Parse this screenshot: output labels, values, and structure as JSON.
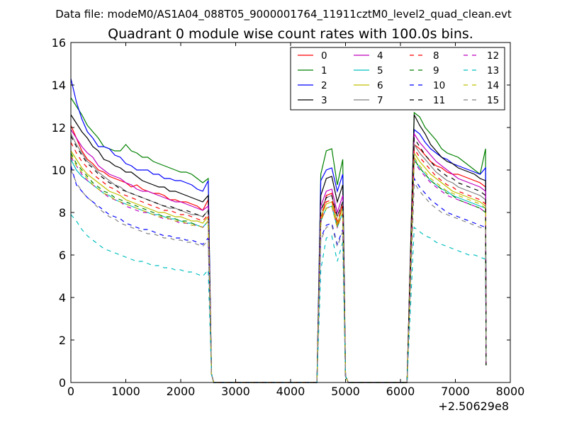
{
  "suptitle": "Data file: modeM0/AS1A04_088T05_9000001764_11911cztM0_level2_quad_clean.evt",
  "chart_data": {
    "type": "line",
    "title": "Quadrant 0 module wise count rates with 100.0s bins.",
    "xlabel": "",
    "ylabel": "",
    "xlim": [
      0,
      8000
    ],
    "ylim": [
      0,
      16
    ],
    "x_ticks": [
      0,
      1000,
      2000,
      3000,
      4000,
      5000,
      6000,
      7000,
      8000
    ],
    "y_ticks": [
      0,
      2,
      4,
      6,
      8,
      10,
      12,
      14,
      16
    ],
    "x_offset_label": "+2.50629e8",
    "grid": false,
    "legend": {
      "placement": "top-right",
      "columns": 4
    },
    "segments": [
      {
        "start": 0,
        "count": 26
      },
      {
        "start": 4550,
        "count": 5
      },
      {
        "start": 6250,
        "count": 14
      }
    ],
    "series": [
      {
        "name": "0",
        "color": "#ff0000",
        "dash": "solid",
        "seg1": [
          12.1,
          11.5,
          10.9,
          10.5,
          10.3,
          10.0,
          9.9,
          9.7,
          9.6,
          9.5,
          9.4,
          9.2,
          9.3,
          9.1,
          9.0,
          8.9,
          8.9,
          8.8,
          8.6,
          8.6,
          8.5,
          8.5,
          8.4,
          8.3,
          8.1,
          8.6
        ],
        "seg2": [
          7.5,
          8.8,
          8.9,
          7.3,
          8.5
        ],
        "seg3": [
          11.2,
          11.0,
          10.7,
          10.4,
          10.2,
          10.1,
          9.9,
          9.8,
          9.8,
          9.7,
          9.6,
          9.5,
          9.4,
          9.2
        ]
      },
      {
        "name": "1",
        "color": "#008000",
        "dash": "solid",
        "seg1": [
          13.4,
          13.0,
          12.6,
          12.1,
          11.8,
          11.5,
          11.1,
          11.0,
          10.9,
          10.9,
          11.2,
          10.9,
          10.8,
          10.6,
          10.6,
          10.4,
          10.3,
          10.2,
          10.1,
          10.0,
          9.9,
          9.9,
          9.8,
          9.6,
          9.4,
          9.6
        ],
        "seg2": [
          9.8,
          10.9,
          11.0,
          9.3,
          10.5
        ],
        "seg3": [
          12.7,
          12.5,
          12.0,
          11.7,
          11.4,
          11.0,
          10.8,
          10.7,
          10.6,
          10.4,
          10.2,
          10.0,
          9.8,
          11.0
        ]
      },
      {
        "name": "2",
        "color": "#0000ff",
        "dash": "solid",
        "seg1": [
          14.3,
          13.2,
          12.4,
          11.8,
          11.5,
          11.1,
          11.1,
          11.0,
          10.7,
          10.6,
          10.3,
          10.2,
          10.0,
          10.0,
          10.0,
          9.8,
          9.8,
          9.6,
          9.6,
          9.5,
          9.5,
          9.4,
          9.3,
          9.1,
          9.0,
          9.5
        ],
        "seg2": [
          9.5,
          10.0,
          10.1,
          9.0,
          9.8
        ],
        "seg3": [
          11.9,
          11.7,
          11.3,
          11.0,
          10.8,
          10.6,
          10.5,
          10.3,
          10.2,
          10.1,
          10.0,
          9.9,
          9.8,
          10.1
        ]
      },
      {
        "name": "3",
        "color": "#000000",
        "dash": "solid",
        "seg1": [
          12.6,
          12.2,
          11.8,
          11.5,
          11.1,
          10.9,
          10.5,
          10.4,
          10.2,
          10.1,
          9.9,
          9.9,
          9.7,
          9.5,
          9.4,
          9.3,
          9.2,
          9.2,
          9.0,
          9.0,
          8.9,
          8.8,
          8.7,
          8.6,
          8.5,
          8.8
        ],
        "seg2": [
          8.8,
          9.6,
          9.7,
          8.5,
          9.3
        ],
        "seg3": [
          12.6,
          12.1,
          11.7,
          11.2,
          10.9,
          10.6,
          10.4,
          10.3,
          10.1,
          10.0,
          9.9,
          9.8,
          9.6,
          9.5
        ]
      },
      {
        "name": "4",
        "color": "#bf00bf",
        "dash": "solid",
        "seg1": [
          11.9,
          11.5,
          11.1,
          10.8,
          10.6,
          10.2,
          10.0,
          9.8,
          9.7,
          9.6,
          9.4,
          9.3,
          9.1,
          9.0,
          9.0,
          8.9,
          8.8,
          8.7,
          8.6,
          8.5,
          8.5,
          8.4,
          8.3,
          8.2,
          8.1,
          8.3
        ],
        "seg2": [
          8.3,
          9.0,
          9.1,
          8.0,
          8.8
        ],
        "seg3": [
          11.7,
          11.3,
          11.0,
          10.7,
          10.4,
          10.2,
          10.0,
          9.8,
          9.6,
          9.5,
          9.4,
          9.3,
          9.2,
          9.0
        ]
      },
      {
        "name": "5",
        "color": "#00bfbf",
        "dash": "solid",
        "seg1": [
          10.5,
          10.0,
          9.7,
          9.5,
          9.3,
          9.1,
          8.9,
          8.8,
          8.6,
          8.5,
          8.4,
          8.3,
          8.2,
          8.1,
          8.0,
          7.9,
          7.9,
          7.8,
          7.7,
          7.7,
          7.6,
          7.5,
          7.5,
          7.4,
          7.3,
          7.6
        ],
        "seg2": [
          7.6,
          8.2,
          8.3,
          7.3,
          8.0
        ],
        "seg3": [
          10.5,
          10.1,
          9.8,
          9.5,
          9.3,
          9.1,
          9.0,
          8.8,
          8.7,
          8.6,
          8.5,
          8.4,
          8.3,
          8.2
        ]
      },
      {
        "name": "6",
        "color": "#bfbf00",
        "dash": "solid",
        "seg1": [
          10.9,
          10.5,
          10.1,
          9.8,
          9.6,
          9.4,
          9.2,
          9.0,
          8.9,
          8.8,
          8.6,
          8.5,
          8.4,
          8.3,
          8.2,
          8.1,
          8.0,
          8.0,
          7.9,
          7.8,
          7.8,
          7.7,
          7.6,
          7.6,
          7.5,
          7.8
        ],
        "seg2": [
          7.8,
          8.4,
          8.5,
          7.5,
          8.2
        ],
        "seg3": [
          10.8,
          10.4,
          10.1,
          9.8,
          9.6,
          9.4,
          9.2,
          9.0,
          8.9,
          8.8,
          8.7,
          8.6,
          8.5,
          8.3
        ]
      },
      {
        "name": "7",
        "color": "#808080",
        "dash": "solid",
        "seg1": [
          11.7,
          11.2,
          10.8,
          10.4,
          10.2,
          9.9,
          9.7,
          9.5,
          9.3,
          9.2,
          9.0,
          8.9,
          8.8,
          8.7,
          8.6,
          8.5,
          8.4,
          8.3,
          8.2,
          8.2,
          8.1,
          8.0,
          7.9,
          7.9,
          7.8,
          8.1
        ],
        "seg2": [
          8.1,
          8.7,
          8.8,
          7.8,
          8.5
        ],
        "seg3": [
          11.2,
          10.8,
          10.5,
          10.2,
          9.9,
          9.7,
          9.5,
          9.4,
          9.2,
          9.1,
          9.0,
          8.9,
          8.8,
          8.6
        ]
      },
      {
        "name": "8",
        "color": "#ff0000",
        "dash": "dashed",
        "seg1": [
          11.3,
          10.8,
          10.4,
          10.1,
          9.8,
          9.6,
          9.4,
          9.2,
          9.1,
          8.9,
          8.8,
          8.7,
          8.6,
          8.5,
          8.4,
          8.3,
          8.2,
          8.1,
          8.1,
          8.0,
          7.9,
          7.9,
          7.8,
          7.7,
          7.6,
          7.9
        ],
        "seg2": [
          7.9,
          8.5,
          8.6,
          7.6,
          8.3
        ],
        "seg3": [
          11.0,
          10.6,
          10.3,
          10.0,
          9.7,
          9.5,
          9.3,
          9.2,
          9.0,
          8.9,
          8.8,
          8.7,
          8.6,
          8.4
        ]
      },
      {
        "name": "9",
        "color": "#008000",
        "dash": "dashed",
        "seg1": [
          10.8,
          10.3,
          10.0,
          9.7,
          9.4,
          9.2,
          9.0,
          8.9,
          8.7,
          8.6,
          8.5,
          8.4,
          8.3,
          8.2,
          8.1,
          8.0,
          7.9,
          7.8,
          7.8,
          7.7,
          7.6,
          7.6,
          7.5,
          7.4,
          7.3,
          7.6
        ],
        "seg2": [
          7.6,
          8.2,
          8.3,
          7.3,
          8.0
        ],
        "seg3": [
          10.5,
          10.1,
          9.8,
          9.5,
          9.3,
          9.1,
          8.9,
          8.8,
          8.6,
          8.5,
          8.4,
          8.3,
          8.2,
          8.0
        ]
      },
      {
        "name": "10",
        "color": "#0000ff",
        "dash": "dashed",
        "seg1": [
          10.2,
          9.3,
          9.0,
          8.7,
          8.5,
          8.3,
          8.1,
          7.9,
          7.8,
          7.7,
          7.5,
          7.4,
          7.3,
          7.2,
          7.2,
          7.1,
          7.0,
          6.9,
          6.9,
          6.8,
          6.8,
          6.7,
          6.7,
          6.6,
          6.5,
          6.8
        ],
        "seg2": [
          6.8,
          7.4,
          7.5,
          6.5,
          7.2
        ],
        "seg3": [
          9.6,
          9.2,
          8.9,
          8.6,
          8.4,
          8.2,
          8.0,
          7.9,
          7.8,
          7.7,
          7.6,
          7.5,
          7.4,
          7.3
        ]
      },
      {
        "name": "11",
        "color": "#000000",
        "dash": "dashed",
        "seg1": [
          11.6,
          11.1,
          10.7,
          10.3,
          10.1,
          9.8,
          9.6,
          9.4,
          9.3,
          9.1,
          9.0,
          8.9,
          8.8,
          8.7,
          8.6,
          8.5,
          8.4,
          8.3,
          8.3,
          8.2,
          8.1,
          8.1,
          8.0,
          7.9,
          7.8,
          8.1
        ],
        "seg2": [
          8.1,
          8.7,
          8.8,
          7.8,
          8.5
        ],
        "seg3": [
          11.5,
          11.1,
          10.7,
          10.4,
          10.1,
          9.9,
          9.7,
          9.6,
          9.4,
          9.3,
          9.2,
          9.1,
          9.0,
          8.8
        ]
      },
      {
        "name": "12",
        "color": "#bf00bf",
        "dash": "dashed",
        "seg1": [
          10.6,
          10.2,
          9.8,
          9.5,
          9.3,
          9.1,
          8.9,
          8.7,
          8.6,
          8.5,
          8.3,
          8.2,
          8.1,
          8.0,
          8.0,
          7.9,
          7.8,
          7.7,
          7.7,
          7.6,
          7.5,
          7.5,
          7.4,
          7.4,
          7.3,
          7.6
        ],
        "seg2": [
          7.6,
          8.2,
          8.3,
          7.3,
          8.0
        ],
        "seg3": [
          10.4,
          10.0,
          9.7,
          9.4,
          9.2,
          9.0,
          8.8,
          8.7,
          8.6,
          8.5,
          8.4,
          8.3,
          8.2,
          8.0
        ]
      },
      {
        "name": "13",
        "color": "#00bfbf",
        "dash": "dashed",
        "seg1": [
          7.9,
          7.6,
          7.2,
          6.9,
          6.7,
          6.5,
          6.3,
          6.2,
          6.1,
          6.0,
          5.9,
          5.8,
          5.7,
          5.7,
          5.6,
          5.5,
          5.5,
          5.4,
          5.4,
          5.3,
          5.3,
          5.2,
          5.2,
          5.1,
          5.0,
          5.3
        ],
        "seg2": [
          5.3,
          6.8,
          6.9,
          5.7,
          6.6
        ],
        "seg3": [
          7.3,
          7.1,
          6.9,
          6.8,
          6.6,
          6.5,
          6.4,
          6.3,
          6.2,
          6.1,
          6.0,
          6.0,
          5.9,
          5.8
        ]
      },
      {
        "name": "14",
        "color": "#bfbf00",
        "dash": "dashed",
        "seg1": [
          10.7,
          10.2,
          9.9,
          9.6,
          9.3,
          9.1,
          8.9,
          8.8,
          8.6,
          8.5,
          8.4,
          8.3,
          8.2,
          8.1,
          8.0,
          7.9,
          7.8,
          7.8,
          7.7,
          7.6,
          7.6,
          7.5,
          7.4,
          7.4,
          7.3,
          7.6
        ],
        "seg2": [
          7.6,
          8.2,
          8.3,
          7.3,
          8.0
        ],
        "seg3": [
          10.6,
          10.2,
          9.9,
          9.6,
          9.4,
          9.2,
          9.0,
          8.9,
          8.8,
          8.7,
          8.6,
          8.5,
          8.4,
          8.2
        ]
      },
      {
        "name": "15",
        "color": "#808080",
        "dash": "dashed",
        "seg1": [
          10.0,
          9.4,
          9.0,
          8.7,
          8.5,
          8.2,
          8.0,
          7.8,
          7.7,
          7.5,
          7.4,
          7.3,
          7.2,
          7.1,
          7.0,
          7.0,
          6.9,
          6.8,
          6.8,
          6.7,
          6.7,
          6.6,
          6.6,
          6.5,
          6.4,
          6.7
        ],
        "seg2": [
          6.7,
          7.3,
          7.4,
          6.4,
          7.1
        ],
        "seg3": [
          9.4,
          9.0,
          8.7,
          8.4,
          8.2,
          8.0,
          7.9,
          7.8,
          7.7,
          7.6,
          7.5,
          7.4,
          7.3,
          7.2
        ]
      }
    ]
  }
}
